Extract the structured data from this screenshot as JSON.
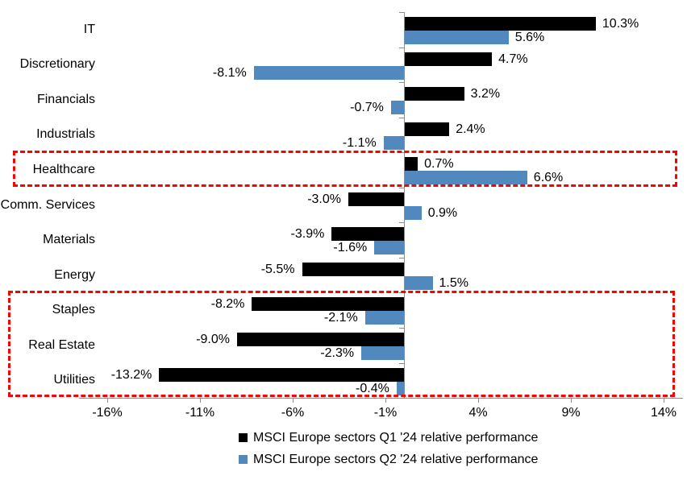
{
  "chart_data": {
    "type": "bar",
    "orientation": "horizontal",
    "title": "",
    "categories": [
      "IT",
      "Discretionary",
      "Financials",
      "Industrials",
      "Healthcare",
      "Comm. Services",
      "Materials",
      "Energy",
      "Staples",
      "Real Estate",
      "Utilities"
    ],
    "series": [
      {
        "name": "MSCI Europe sectors Q1 '24 relative performance",
        "color": "#000000",
        "values": [
          10.3,
          4.7,
          3.2,
          2.4,
          0.7,
          -3.0,
          -3.9,
          -5.5,
          -8.2,
          -9.0,
          -13.2
        ],
        "labels": [
          "10.3%",
          "4.7%",
          "3.2%",
          "2.4%",
          "0.7%",
          "-3.0%",
          "-3.9%",
          "-5.5%",
          "-8.2%",
          "-9.0%",
          "-13.2%"
        ]
      },
      {
        "name": "MSCI Europe sectors Q2 '24 relative performance",
        "color": "#5189bf",
        "values": [
          5.6,
          -8.1,
          -0.7,
          -1.1,
          6.6,
          0.9,
          -1.6,
          1.5,
          -2.1,
          -2.3,
          -0.4
        ],
        "labels": [
          "5.6%",
          "-8.1%",
          "-0.7%",
          "-1.1%",
          "6.6%",
          "0.9%",
          "-1.6%",
          "1.5%",
          "-2.1%",
          "-2.3%",
          "-0.4%"
        ]
      }
    ],
    "x_axis": {
      "unit": "%",
      "tick_values": [
        -16,
        -11,
        -6,
        -1,
        4,
        9,
        14
      ],
      "tick_labels": [
        "-16%",
        "-11%",
        "-6%",
        "-1%",
        "4%",
        "9%",
        "14%"
      ],
      "min": -17.5,
      "max": 15
    },
    "grid": false,
    "value_labels_shown": true,
    "legend": {
      "position": "bottom",
      "items": [
        {
          "label": "MSCI Europe sectors Q1 '24 relative performance",
          "color": "#000000"
        },
        {
          "label": "MSCI Europe sectors Q2 '24 relative performance",
          "color": "#5189bf"
        }
      ]
    },
    "highlights": [
      {
        "categories": [
          "Healthcare"
        ],
        "color": "#ff0000",
        "style": "dashed"
      },
      {
        "categories": [
          "Staples",
          "Real Estate",
          "Utilities"
        ],
        "color": "#ff0000",
        "style": "dashed"
      }
    ],
    "axis_color": "#8c8c8c"
  }
}
